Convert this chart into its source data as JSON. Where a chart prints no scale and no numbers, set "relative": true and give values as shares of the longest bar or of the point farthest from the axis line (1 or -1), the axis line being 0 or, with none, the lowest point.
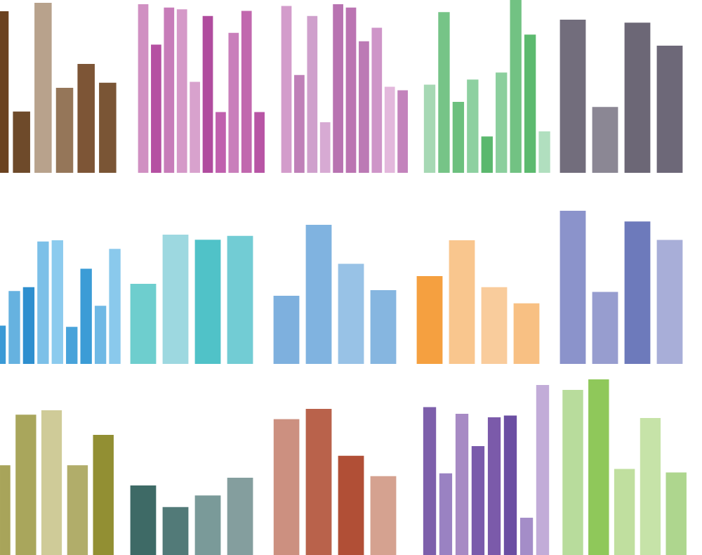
{
  "chart_data": [
    {
      "type": "bar",
      "relative": true,
      "categories": [
        null,
        null,
        null,
        null,
        null,
        null
      ],
      "values": [
        0.95,
        0.36,
        1,
        0.5,
        0.64,
        0.53
      ],
      "colors": [
        "#6b4220",
        "#6e4a2a",
        "#b8a28c",
        "#957659",
        "#7d5536",
        "#7a5535"
      ]
    },
    {
      "type": "bar",
      "relative": true,
      "categories": [
        null,
        null,
        null,
        null,
        null,
        null,
        null,
        null,
        null,
        null
      ],
      "values": [
        1,
        0.76,
        0.98,
        0.97,
        0.54,
        0.93,
        0.36,
        0.83,
        0.96,
        0.36
      ],
      "colors": [
        "#d090c2",
        "#b550a2",
        "#c77cb9",
        "#d599c8",
        "#d8a2cd",
        "#b04c9e",
        "#c060ae",
        "#c97fbb",
        "#c168ae",
        "#b855a5"
      ]
    },
    {
      "type": "bar",
      "relative": true,
      "categories": [
        null,
        null,
        null,
        null,
        null,
        null,
        null,
        null,
        null,
        null
      ],
      "values": [
        0.99,
        0.58,
        0.93,
        0.3,
        1,
        0.98,
        0.78,
        0.86,
        0.51,
        0.49
      ],
      "colors": [
        "#d39ccb",
        "#bf80b8",
        "#cfa0cc",
        "#d7aad3",
        "#b873b1",
        "#bb74b2",
        "#bc7ab5",
        "#ce95c8",
        "#e3b8dc",
        "#c383bc"
      ]
    },
    {
      "type": "bar",
      "relative": true,
      "categories": [
        null,
        null,
        null,
        null,
        null,
        null,
        null,
        null,
        null
      ],
      "values": [
        0.51,
        0.93,
        0.41,
        0.54,
        0.21,
        0.58,
        1,
        0.8,
        0.24
      ],
      "colors": [
        "#a6d8b4",
        "#76c487",
        "#6cc07e",
        "#8dd0a0",
        "#5bb86e",
        "#8bcf9d",
        "#72c283",
        "#5cba6f",
        "#b1dfbf"
      ]
    },
    {
      "type": "bar",
      "relative": true,
      "categories": [
        null,
        null,
        null,
        null
      ],
      "values": [
        1,
        0.43,
        0.98,
        0.83
      ],
      "colors": [
        "#726d7c",
        "#8b8794",
        "#6c6776",
        "#6d6878"
      ]
    },
    {
      "type": "bar",
      "relative": true,
      "categories": [
        null,
        null,
        null,
        null,
        null,
        null,
        null,
        null,
        null
      ],
      "values": [
        0.31,
        0.59,
        0.62,
        0.99,
        1,
        0.3,
        0.77,
        0.47,
        0.93
      ],
      "colors": [
        "#3a9ad6",
        "#66b2e0",
        "#2e8fcf",
        "#7cc0e8",
        "#8ccbee",
        "#48a3da",
        "#3b9cd6",
        "#6fb9e5",
        "#8ac9ec"
      ]
    },
    {
      "type": "bar",
      "relative": true,
      "categories": [
        null,
        null,
        null,
        null
      ],
      "values": [
        0.62,
        1,
        0.96,
        0.99
      ],
      "colors": [
        "#6ecece",
        "#9dd8e0",
        "#50c2c8",
        "#72ccd4"
      ]
    },
    {
      "type": "bar",
      "relative": true,
      "categories": [
        null,
        null,
        null,
        null
      ],
      "values": [
        0.49,
        1,
        0.72,
        0.53
      ],
      "colors": [
        "#7eb0de",
        "#80b3e0",
        "#98c2e6",
        "#86b6e0"
      ]
    },
    {
      "type": "bar",
      "relative": true,
      "categories": [
        null,
        null,
        null,
        null
      ],
      "values": [
        0.71,
        1,
        0.62,
        0.49
      ],
      "colors": [
        "#f5a040",
        "#f9c68e",
        "#f9cc9c",
        "#f8c083"
      ]
    },
    {
      "type": "bar",
      "relative": true,
      "categories": [
        null,
        null,
        null,
        null
      ],
      "values": [
        1,
        0.47,
        0.93,
        0.81
      ],
      "colors": [
        "#8b93cb",
        "#979dcf",
        "#6d7abb",
        "#a8aed8"
      ]
    },
    {
      "type": "bar",
      "relative": true,
      "categories": [
        null,
        null,
        null,
        null,
        null
      ],
      "values": [
        0.62,
        0.97,
        1,
        0.62,
        0.83
      ],
      "colors": [
        "#a8a45a",
        "#a9a65c",
        "#cfcb98",
        "#b1ad6a",
        "#928f33"
      ]
    },
    {
      "type": "bar",
      "relative": true,
      "categories": [
        null,
        null,
        null,
        null
      ],
      "values": [
        0.9,
        0.62,
        0.77,
        1
      ],
      "colors": [
        "#3e6a66",
        "#527a78",
        "#7a9a99",
        "#849e9e"
      ]
    },
    {
      "type": "bar",
      "relative": true,
      "categories": [
        null,
        null,
        null,
        null
      ],
      "values": [
        0.93,
        1,
        0.68,
        0.54
      ],
      "colors": [
        "#cc9080",
        "#b9624b",
        "#b14f36",
        "#d5a290"
      ]
    },
    {
      "type": "bar",
      "relative": true,
      "categories": [
        null,
        null,
        null,
        null,
        null,
        null,
        null,
        null
      ],
      "values": [
        0.87,
        0.48,
        0.83,
        0.64,
        0.81,
        0.82,
        0.22,
        1
      ],
      "colors": [
        "#7d5fab",
        "#9a82c2",
        "#a78ac4",
        "#7a5bab",
        "#7b5aaa",
        "#6b4ea2",
        "#a48dc8",
        "#c2acd8"
      ]
    },
    {
      "type": "bar",
      "relative": true,
      "categories": [
        null,
        null,
        null,
        null,
        null
      ],
      "values": [
        0.94,
        1,
        0.49,
        0.78,
        0.47
      ],
      "colors": [
        "#b8dc9c",
        "#8fc85a",
        "#c0df9f",
        "#c6e3a8",
        "#aed68e"
      ]
    }
  ]
}
